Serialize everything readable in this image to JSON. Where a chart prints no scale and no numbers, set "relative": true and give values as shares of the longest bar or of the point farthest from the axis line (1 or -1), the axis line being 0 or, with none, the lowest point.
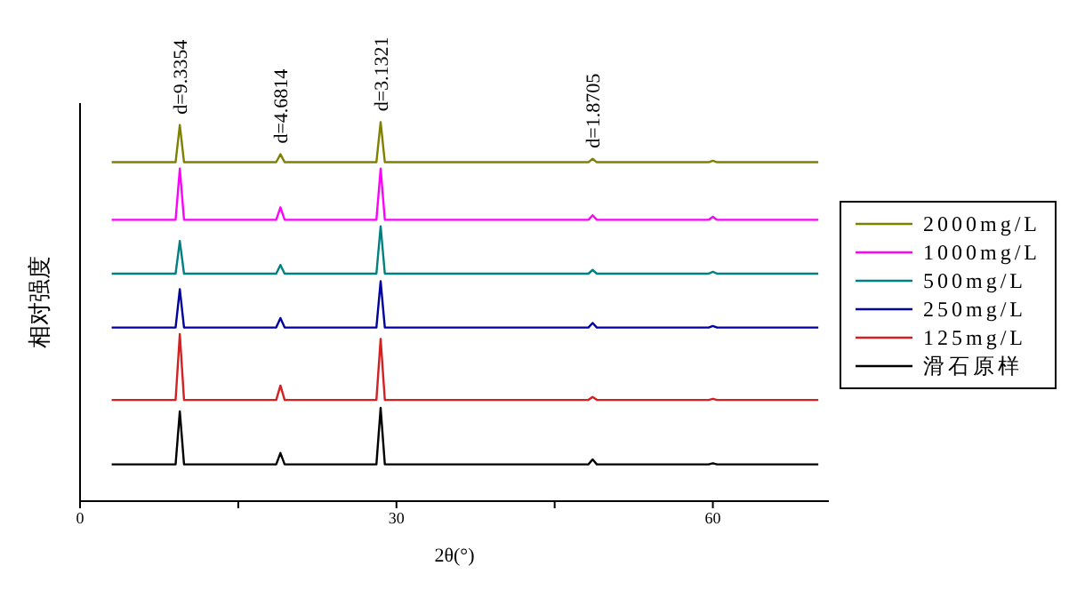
{
  "chart_data": {
    "type": "line",
    "relative": true,
    "xlabel": "2θ(°)",
    "ylabel": "相对强度",
    "x": [
      3,
      9.06,
      9.46,
      9.86,
      18.6,
      19.0,
      19.4,
      28.1,
      28.5,
      28.9,
      48.2,
      48.6,
      49.0,
      59.6,
      60.0,
      60.4,
      70
    ],
    "xlim": [
      0,
      71
    ],
    "xticks": [
      0,
      {
        "value": 15,
        "label": null
      },
      30,
      {
        "value": 45,
        "label": null
      },
      60
    ],
    "legend": "right",
    "grid": false,
    "marker": "none",
    "line_style": "solid",
    "annotations": [
      {
        "text": "d=9.3354",
        "x": 9.46,
        "y": 0.992
      },
      {
        "text": "d=4.6814",
        "x": 19.0,
        "y": 0.915
      },
      {
        "text": "d=3.1321",
        "x": 28.5,
        "y": 1.0
      },
      {
        "text": "d=1.8705",
        "x": 48.6,
        "y": 0.903
      }
    ],
    "series": [
      {
        "name": "2000mg/L",
        "color": "#808000",
        "values": [
          0.894,
          0.894,
          0.992,
          0.894,
          0.894,
          0.915,
          0.894,
          0.894,
          1.0,
          0.894,
          0.894,
          0.903,
          0.894,
          0.894,
          0.898,
          0.894,
          0.894
        ]
      },
      {
        "name": "1000mg/L",
        "color": "#ff00ff",
        "values": [
          0.742,
          0.742,
          0.877,
          0.742,
          0.742,
          0.775,
          0.742,
          0.742,
          0.877,
          0.742,
          0.742,
          0.754,
          0.742,
          0.742,
          0.75,
          0.742,
          0.742
        ]
      },
      {
        "name": "500mg/L",
        "color": "#008080",
        "values": [
          0.6,
          0.6,
          0.686,
          0.6,
          0.6,
          0.623,
          0.6,
          0.6,
          0.725,
          0.6,
          0.6,
          0.61,
          0.6,
          0.6,
          0.605,
          0.6,
          0.6
        ]
      },
      {
        "name": "250mg/L",
        "color": "#0000a0",
        "values": [
          0.458,
          0.458,
          0.559,
          0.458,
          0.458,
          0.483,
          0.458,
          0.458,
          0.58,
          0.458,
          0.458,
          0.47,
          0.458,
          0.458,
          0.462,
          0.458,
          0.458
        ]
      },
      {
        "name": "125mg/L",
        "color": "#d42020",
        "values": [
          0.267,
          0.267,
          0.441,
          0.267,
          0.267,
          0.305,
          0.267,
          0.267,
          0.428,
          0.267,
          0.267,
          0.275,
          0.267,
          0.267,
          0.27,
          0.267,
          0.267
        ]
      },
      {
        "name": "滑石原样",
        "color": "#000000",
        "values": [
          0.097,
          0.097,
          0.237,
          0.097,
          0.097,
          0.127,
          0.097,
          0.097,
          0.246,
          0.097,
          0.097,
          0.11,
          0.097,
          0.097,
          0.1,
          0.097,
          0.097
        ]
      }
    ]
  }
}
